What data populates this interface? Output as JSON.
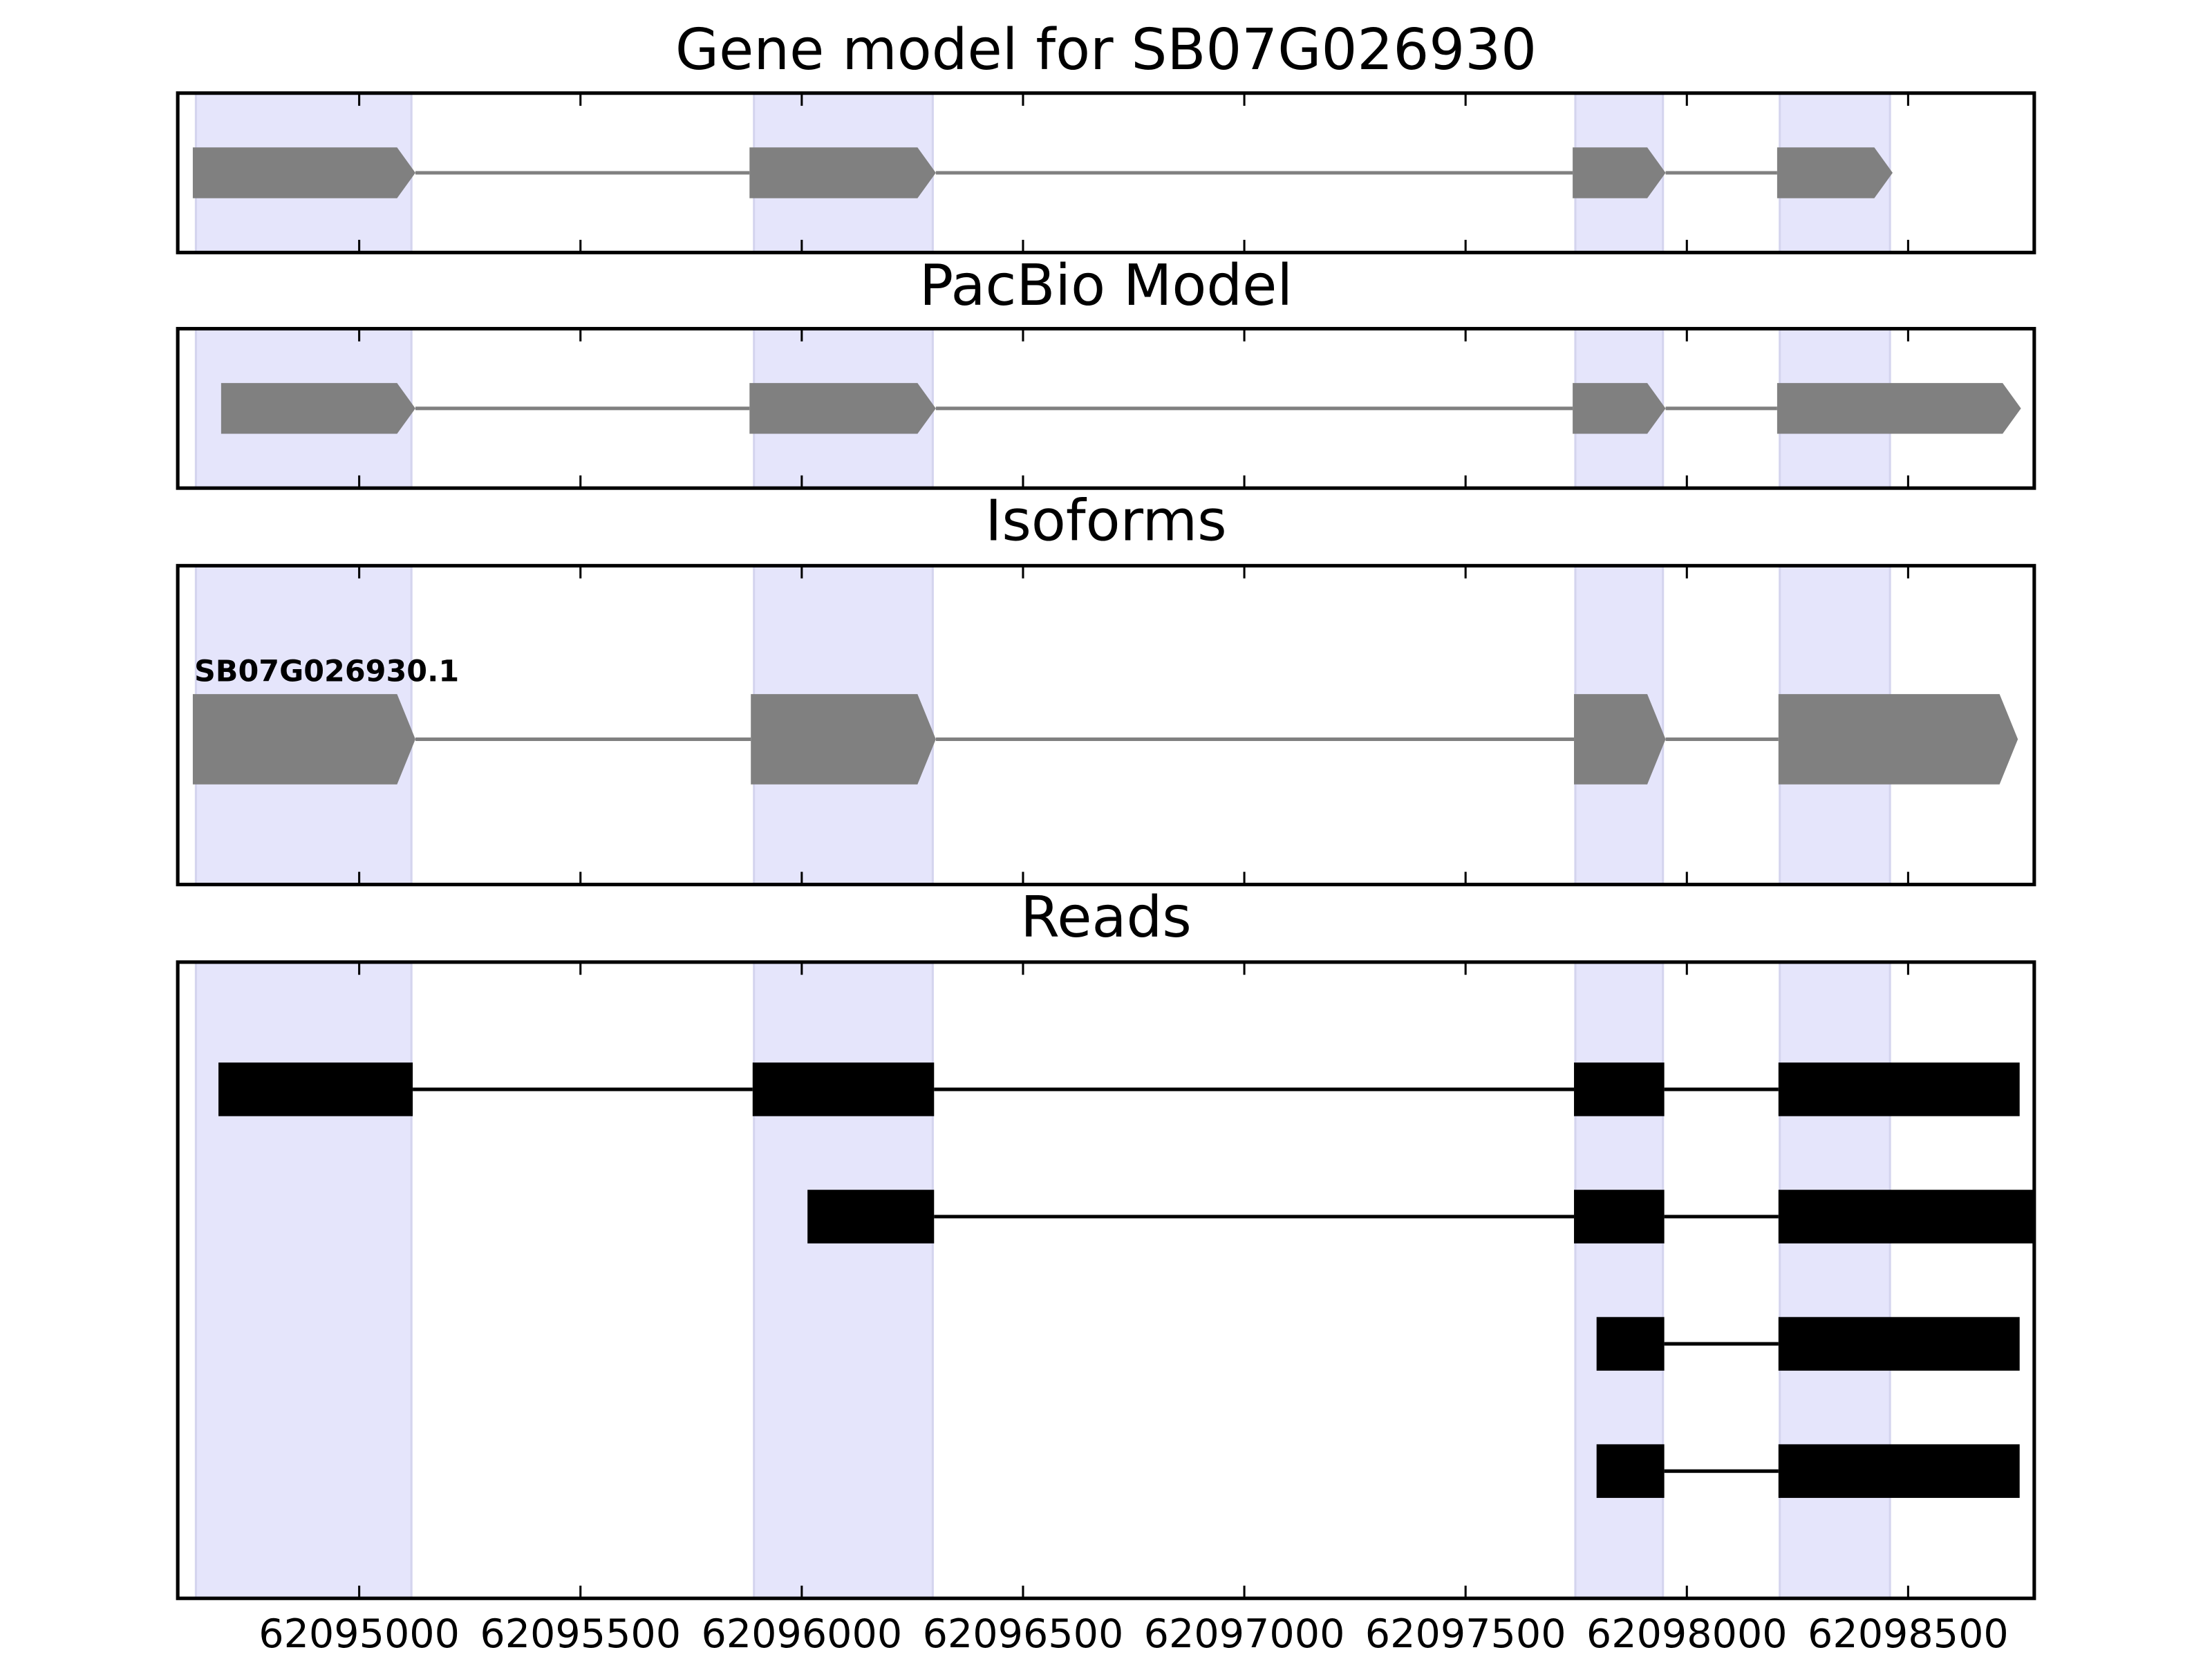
{
  "chart_data": [
    {
      "type": "gene",
      "title": "Gene model for SB07G026930",
      "xlim": [
        62094590,
        62098785
      ],
      "xticks": [
        62095000,
        62095500,
        62096000,
        62096500,
        62097000,
        62097500,
        62098000,
        62098500
      ],
      "xtick_labels": false,
      "highlights": [
        [
          62094631,
          62095118
        ],
        [
          62095892,
          62096296
        ],
        [
          62097748,
          62097946
        ],
        [
          62098210,
          62098459
        ]
      ],
      "highlight_color": "#e5e5fb",
      "color": "#808080",
      "transcripts": [
        {
          "exons": [
            [
              62094624,
              62095127
            ],
            [
              62095882,
              62096303
            ],
            [
              62097742,
              62097952
            ],
            [
              62098204,
              62098465
            ]
          ]
        }
      ]
    },
    {
      "type": "gene",
      "title": "PacBio Model",
      "xlim": [
        62094590,
        62098785
      ],
      "xticks": [
        62095000,
        62095500,
        62096000,
        62096500,
        62097000,
        62097500,
        62098000,
        62098500
      ],
      "xtick_labels": false,
      "highlights": [
        [
          62094631,
          62095118
        ],
        [
          62095892,
          62096296
        ],
        [
          62097748,
          62097946
        ],
        [
          62098210,
          62098459
        ]
      ],
      "highlight_color": "#e5e5fb",
      "color": "#808080",
      "transcripts": [
        {
          "exons": [
            [
              62094688,
              62095127
            ],
            [
              62095882,
              62096303
            ],
            [
              62097742,
              62097952
            ],
            [
              62098204,
              62098755
            ]
          ]
        }
      ]
    },
    {
      "type": "gene",
      "title": "Isoforms",
      "xlim": [
        62094590,
        62098785
      ],
      "xticks": [
        62095000,
        62095500,
        62096000,
        62096500,
        62097000,
        62097500,
        62098000,
        62098500
      ],
      "xtick_labels": false,
      "highlights": [
        [
          62094631,
          62095118
        ],
        [
          62095892,
          62096296
        ],
        [
          62097748,
          62097946
        ],
        [
          62098210,
          62098459
        ]
      ],
      "highlight_color": "#e5e5fb",
      "color": "#808080",
      "transcripts": [
        {
          "label": "SB07G026930.1",
          "exons": [
            [
              62094624,
              62095127
            ],
            [
              62095885,
              62096303
            ],
            [
              62097745,
              62097952
            ],
            [
              62098207,
              62098748
            ]
          ]
        }
      ]
    },
    {
      "type": "reads",
      "title": "Reads",
      "xlim": [
        62094590,
        62098785
      ],
      "xticks": [
        62095000,
        62095500,
        62096000,
        62096500,
        62097000,
        62097500,
        62098000,
        62098500
      ],
      "xtick_labels": true,
      "highlights": [
        [
          62094631,
          62095118
        ],
        [
          62095892,
          62096296
        ],
        [
          62097748,
          62097946
        ],
        [
          62098210,
          62098459
        ]
      ],
      "highlight_color": "#e5e5fb",
      "color": "#000000",
      "transcripts": [
        {
          "exons": [
            [
              62094682,
              62095121
            ],
            [
              62095889,
              62096299
            ],
            [
              62097745,
              62097949
            ],
            [
              62098207,
              62098752
            ]
          ]
        },
        {
          "exons": [
            [
              62096013,
              62096299
            ],
            [
              62097745,
              62097949
            ],
            [
              62098207,
              62098783
            ]
          ]
        },
        {
          "exons": [
            [
              62097796,
              62097949
            ],
            [
              62098207,
              62098752
            ]
          ]
        },
        {
          "exons": [
            [
              62097796,
              62097949
            ],
            [
              62098207,
              62098752
            ]
          ]
        }
      ]
    }
  ]
}
